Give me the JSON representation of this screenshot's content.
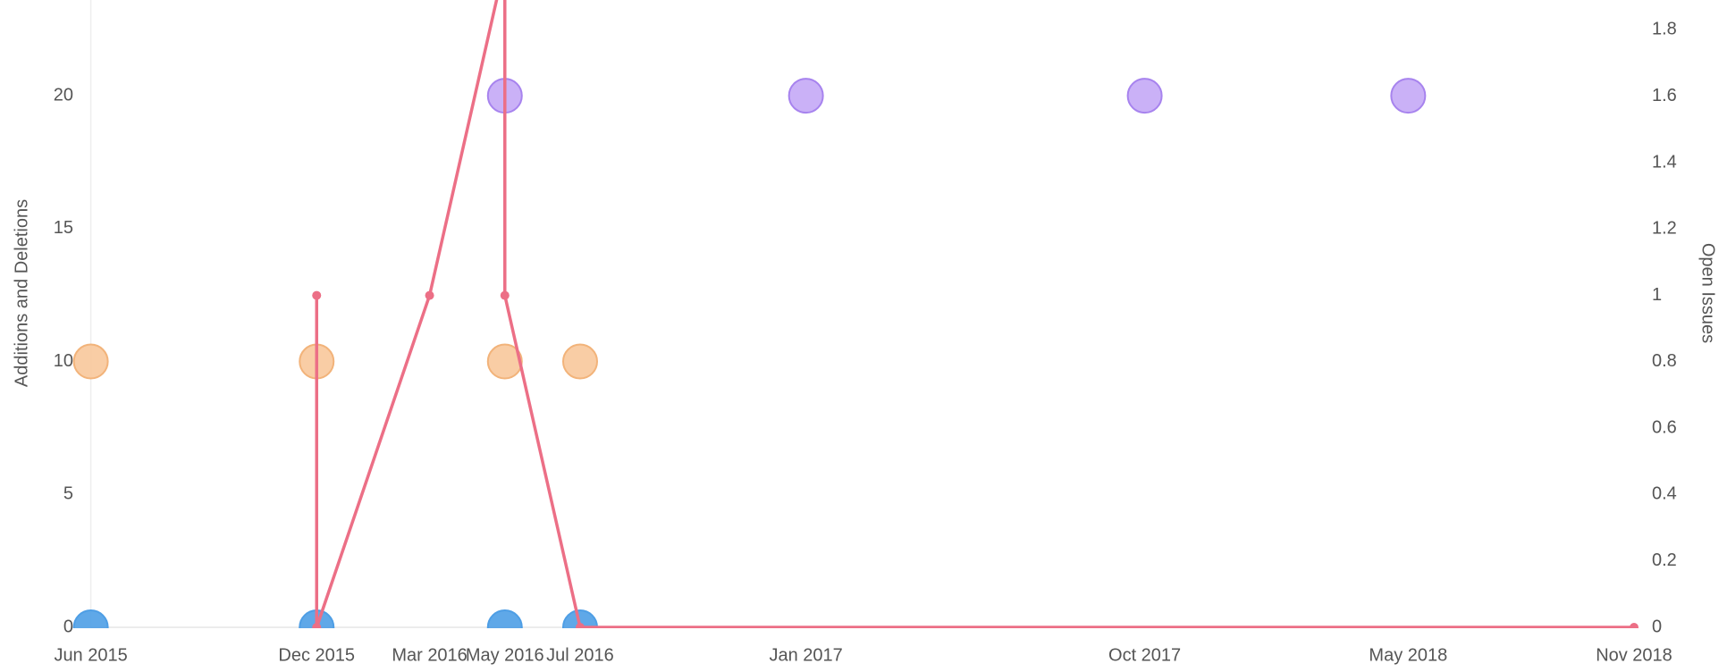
{
  "chart_data": {
    "type": "scatter",
    "ylabel": "Additions and Deletions",
    "y2label": "Open Issues",
    "xlim": [
      "2015-06",
      "2018-11"
    ],
    "xticks": [
      {
        "value": "2015-06",
        "label": "Jun 2015"
      },
      {
        "value": "2015-12",
        "label": "Dec 2015"
      },
      {
        "value": "2016-03",
        "label": "Mar 2016"
      },
      {
        "value": "2016-05",
        "label": "May 2016"
      },
      {
        "value": "2016-07",
        "label": "Jul 2016"
      },
      {
        "value": "2017-01",
        "label": "Jan 2017"
      },
      {
        "value": "2017-10",
        "label": "Oct 2017"
      },
      {
        "value": "2018-05",
        "label": "May 2018"
      },
      {
        "value": "2018-11",
        "label": "Nov 2018"
      }
    ],
    "ylim": [
      0,
      23.6
    ],
    "yticks": [
      0,
      5,
      10,
      15,
      20
    ],
    "y2lim": [
      0,
      1.89
    ],
    "y2ticks": [
      0,
      0.2,
      0.4,
      0.6,
      0.8,
      1.0,
      1.2,
      1.4,
      1.6,
      1.8
    ],
    "series": [
      {
        "type": "scatter",
        "color": "#f8c89b",
        "stroke": "#f2b37a",
        "x": [
          "2015-06",
          "2015-12",
          "2016-05",
          "2016-07"
        ],
        "values": [
          10,
          10,
          10,
          10
        ]
      },
      {
        "type": "scatter",
        "color": "#c4a9f6",
        "stroke": "#a783ee",
        "x": [
          "2016-05",
          "2017-01",
          "2017-10",
          "2018-05"
        ],
        "values": [
          20,
          20,
          20,
          20
        ]
      },
      {
        "type": "scatter",
        "color": "#4e9ee5",
        "stroke": "#4e9ee5",
        "x": [
          "2015-06",
          "2015-12",
          "2016-05",
          "2016-07"
        ],
        "values": [
          0,
          0,
          0,
          0
        ]
      },
      {
        "type": "line",
        "axis": "y2",
        "color": "#ec6f86",
        "x": [
          "2015-12",
          "2015-12",
          "2016-03",
          "2016-05",
          "2016-05",
          "2016-07",
          "2018-11"
        ],
        "values": [
          1,
          0,
          1,
          2,
          1,
          0,
          0
        ]
      }
    ]
  }
}
